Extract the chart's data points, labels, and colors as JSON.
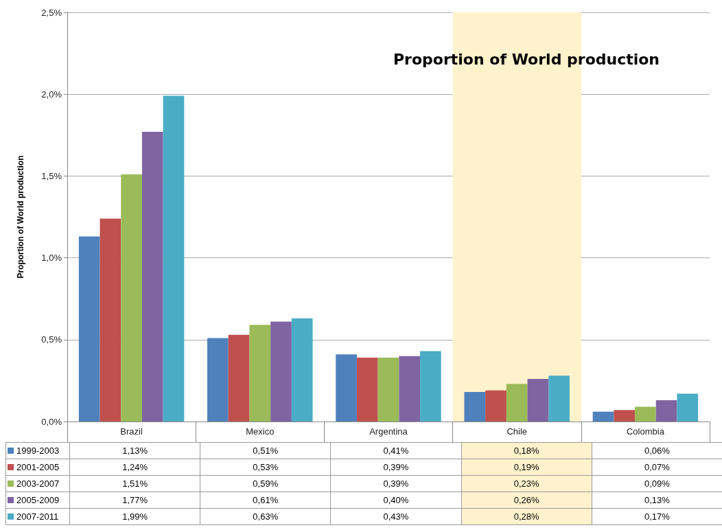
{
  "chart_data": {
    "type": "bar",
    "title": "Proportion of World production",
    "ylabel": "Proportion of World production",
    "categories": [
      "Brazil",
      "Mexico",
      "Argentina",
      "Chile",
      "Colombia"
    ],
    "series": [
      {
        "name": "1999-2003",
        "color": "#4f81bd",
        "values": [
          1.13,
          0.51,
          0.41,
          0.18,
          0.06
        ],
        "value_labels": [
          "1,13%",
          "0,51%",
          "0,41%",
          "0,18%",
          "0,06%"
        ]
      },
      {
        "name": "2001-2005",
        "color": "#c0504d",
        "values": [
          1.24,
          0.53,
          0.39,
          0.19,
          0.07
        ],
        "value_labels": [
          "1,24%",
          "0,53%",
          "0,39%",
          "0,19%",
          "0,07%"
        ]
      },
      {
        "name": "2003-2007",
        "color": "#9bbb59",
        "values": [
          1.51,
          0.59,
          0.39,
          0.23,
          0.09
        ],
        "value_labels": [
          "1,51%",
          "0,59%",
          "0,39%",
          "0,23%",
          "0,09%"
        ]
      },
      {
        "name": "2005-2009",
        "color": "#8064a2",
        "values": [
          1.77,
          0.61,
          0.4,
          0.26,
          0.13
        ],
        "value_labels": [
          "1,77%",
          "0,61%",
          "0,40%",
          "0,26%",
          "0,13%"
        ]
      },
      {
        "name": "2007-2011",
        "color": "#4bacc6",
        "values": [
          1.99,
          0.63,
          0.43,
          0.28,
          0.17
        ],
        "value_labels": [
          "1,99%",
          "0,63%",
          "0,43%",
          "0,28%",
          "0,17%"
        ]
      }
    ],
    "ylim": [
      0,
      2.5
    ],
    "yticks": [
      {
        "value": 0,
        "label": "0,0%"
      },
      {
        "value": 0.5,
        "label": "0,5%"
      },
      {
        "value": 1,
        "label": "1,0%"
      },
      {
        "value": 1.5,
        "label": "1,5%"
      },
      {
        "value": 2,
        "label": "2,0%"
      },
      {
        "value": 2.5,
        "label": "2,5%"
      }
    ],
    "bands": [
      {
        "axis": "x",
        "from": "Chile",
        "to": "Chile",
        "color": "#fff2cc"
      }
    ],
    "grid": "y",
    "legend": "bottom"
  }
}
